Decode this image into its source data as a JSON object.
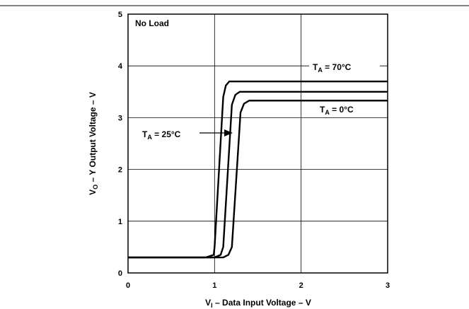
{
  "chart_data": {
    "type": "line",
    "xlabel": "VI – Data Input Voltage – V",
    "ylabel": "VO – Y Output Voltage – V",
    "xlim": [
      0,
      3
    ],
    "ylim": [
      0,
      5
    ],
    "x_ticks": [
      "0",
      "1",
      "2",
      "3"
    ],
    "y_ticks": [
      "0",
      "1",
      "2",
      "3",
      "4",
      "5"
    ],
    "grid": true,
    "annotations": {
      "condition": "No Load",
      "ta70": "TA = 70°C",
      "ta25": "TA = 25°C",
      "ta0": "TA = 0°C"
    },
    "series": [
      {
        "name": "TA = 70°C",
        "x": [
          0,
          0.9,
          0.99,
          1.0,
          1.1,
          1.13,
          1.17,
          3.0
        ],
        "y": [
          0.3,
          0.3,
          0.35,
          0.5,
          3.4,
          3.62,
          3.7,
          3.7
        ]
      },
      {
        "name": "TA = 25°C",
        "x": [
          0,
          1.0,
          1.07,
          1.1,
          1.2,
          1.24,
          1.29,
          3.0
        ],
        "y": [
          0.3,
          0.3,
          0.35,
          0.5,
          3.25,
          3.44,
          3.5,
          3.5
        ]
      },
      {
        "name": "TA = 0°C",
        "x": [
          0,
          1.1,
          1.16,
          1.2,
          1.3,
          1.34,
          1.4,
          3.0
        ],
        "y": [
          0.3,
          0.3,
          0.35,
          0.5,
          3.1,
          3.27,
          3.33,
          3.33
        ]
      }
    ]
  }
}
